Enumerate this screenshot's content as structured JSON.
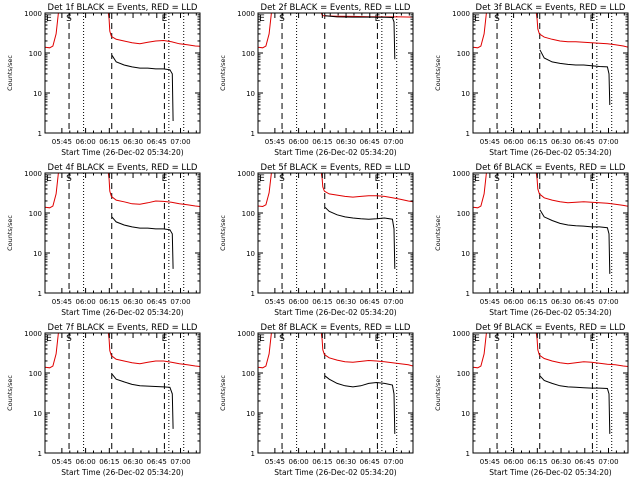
{
  "layout": {
    "rows": 3,
    "cols": 3
  },
  "common": {
    "title_suffix": "BLACK = Events, RED = LLD",
    "xlabel": "Start Time (26-Dec-02 05:34:20)",
    "ylabel": "Counts/sec",
    "x_tick_labels": [
      "05:45",
      "06:00",
      "06:15",
      "06:30",
      "06:45",
      "07:00"
    ],
    "x_tick_minutes": [
      10.67,
      25.67,
      40.67,
      55.67,
      70.67,
      85.67
    ],
    "y_tick_labels": [
      "1",
      "10",
      "100",
      "1000"
    ],
    "y_tick_values": [
      1,
      10,
      100,
      1000
    ],
    "xlim_minutes": [
      0,
      98
    ],
    "ylim": [
      1,
      1000
    ],
    "yscale": "log",
    "markers": {
      "S": 15.2,
      "E": 75.5
    },
    "dashed_lines_minutes": [
      15.2,
      42.2,
      75.5
    ],
    "dotted_lines_minutes": [
      24.4,
      78.3,
      87.7
    ],
    "colors": {
      "events": "#000000",
      "lld": "#e00000",
      "axes": "#000000"
    }
  },
  "chart_data": [
    {
      "type": "line",
      "title": "Det 1f BLACK = Events, RED = LLD",
      "xlabel": "Start Time (26-Dec-02 05:34:20)",
      "ylabel": "Counts/sec",
      "yscale": "log",
      "ylim": [
        1,
        1000
      ],
      "series": [
        {
          "name": "Events",
          "x": [
            42.3,
            45,
            50,
            55,
            60,
            65,
            70,
            75,
            79,
            80.5,
            81
          ],
          "y": [
            88,
            60,
            50,
            45,
            42,
            42,
            40,
            40,
            38,
            30,
            2
          ]
        },
        {
          "name": "LLD",
          "x": [
            0,
            3,
            5,
            7,
            8.5,
            9.5,
            11,
            12.5,
            14,
            15,
            40,
            40.5,
            41,
            42,
            45,
            50,
            55,
            60,
            65,
            70,
            75,
            80,
            85,
            90,
            95,
            98
          ],
          "y": [
            140,
            135,
            150,
            300,
            1000,
            1000,
            1000,
            1000,
            1000,
            1000,
            1000,
            700,
            350,
            260,
            220,
            200,
            180,
            170,
            185,
            200,
            205,
            190,
            170,
            160,
            150,
            148
          ]
        }
      ]
    },
    {
      "type": "line",
      "title": "Det 2f BLACK = Events, RED = LLD",
      "xlabel": "Start Time (26-Dec-02 05:34:20)",
      "ylabel": "Counts/sec",
      "yscale": "log",
      "ylim": [
        1,
        1000
      ],
      "series": [
        {
          "name": "Events",
          "x": [
            42.3,
            50,
            60,
            70,
            80,
            85,
            86,
            86.5
          ],
          "y": [
            850,
            800,
            790,
            790,
            780,
            770,
            600,
            70
          ]
        },
        {
          "name": "LLD",
          "x": [
            0,
            3,
            5,
            7,
            8.5,
            9.5,
            11,
            12.5,
            14,
            15,
            40,
            40.5,
            41,
            42,
            45,
            50,
            60,
            70,
            80,
            90,
            98
          ],
          "y": [
            140,
            135,
            150,
            300,
            1000,
            1000,
            1000,
            1000,
            1000,
            1000,
            1000,
            900,
            860,
            850,
            840,
            830,
            820,
            810,
            800,
            800,
            790
          ]
        }
      ]
    },
    {
      "type": "line",
      "title": "Det 3f BLACK = Events, RED = LLD",
      "xlabel": "Start Time (26-Dec-02 05:34:20)",
      "ylabel": "Counts/sec",
      "yscale": "log",
      "ylim": [
        1,
        1000
      ],
      "series": [
        {
          "name": "Events",
          "x": [
            42.3,
            45,
            50,
            55,
            60,
            65,
            70,
            75,
            80,
            85,
            86,
            86.5
          ],
          "y": [
            120,
            75,
            60,
            55,
            52,
            50,
            50,
            48,
            46,
            45,
            30,
            5
          ]
        },
        {
          "name": "LLD",
          "x": [
            0,
            3,
            5,
            7,
            8.5,
            9.5,
            11,
            12.5,
            14,
            15,
            40,
            40.5,
            41,
            42,
            45,
            50,
            55,
            60,
            65,
            70,
            75,
            80,
            85,
            90,
            95,
            98
          ],
          "y": [
            140,
            135,
            150,
            300,
            1000,
            1000,
            1000,
            1000,
            1000,
            1000,
            1000,
            700,
            400,
            300,
            250,
            220,
            200,
            190,
            190,
            185,
            180,
            175,
            170,
            160,
            150,
            140
          ]
        }
      ]
    },
    {
      "type": "line",
      "title": "Det 4f BLACK = Events, RED = LLD",
      "xlabel": "Start Time (26-Dec-02 05:34:20)",
      "ylabel": "Counts/sec",
      "yscale": "log",
      "ylim": [
        1,
        1000
      ],
      "series": [
        {
          "name": "Events",
          "x": [
            42.3,
            45,
            50,
            55,
            60,
            65,
            70,
            75,
            79,
            80.5,
            81
          ],
          "y": [
            80,
            60,
            50,
            45,
            42,
            42,
            40,
            40,
            38,
            30,
            4
          ]
        },
        {
          "name": "LLD",
          "x": [
            0,
            3,
            5,
            7,
            8.5,
            9.5,
            11,
            12.5,
            14,
            15,
            40,
            40.5,
            41,
            42,
            45,
            50,
            55,
            60,
            65,
            70,
            75,
            80,
            85,
            90,
            95,
            98
          ],
          "y": [
            140,
            135,
            150,
            300,
            1000,
            1000,
            1000,
            1000,
            1000,
            1000,
            1000,
            700,
            350,
            260,
            210,
            190,
            170,
            165,
            180,
            200,
            195,
            185,
            170,
            160,
            150,
            145
          ]
        }
      ]
    },
    {
      "type": "line",
      "title": "Det 5f BLACK = Events, RED = LLD",
      "xlabel": "Start Time (26-Dec-02 05:34:20)",
      "ylabel": "Counts/sec",
      "yscale": "log",
      "ylim": [
        1,
        1000
      ],
      "series": [
        {
          "name": "Events",
          "x": [
            42.3,
            45,
            50,
            55,
            60,
            65,
            70,
            75,
            80,
            85,
            86,
            86.5
          ],
          "y": [
            140,
            110,
            90,
            80,
            75,
            72,
            70,
            72,
            75,
            70,
            40,
            4
          ]
        },
        {
          "name": "LLD",
          "x": [
            0,
            3,
            5,
            7,
            8.5,
            9.5,
            11,
            12.5,
            14,
            15,
            40,
            40.5,
            41,
            42,
            45,
            50,
            55,
            60,
            65,
            70,
            75,
            80,
            85,
            90,
            95,
            98
          ],
          "y": [
            150,
            145,
            160,
            320,
            1000,
            1000,
            1000,
            1000,
            1000,
            1000,
            1000,
            750,
            450,
            350,
            300,
            280,
            260,
            250,
            260,
            270,
            270,
            260,
            240,
            220,
            200,
            190
          ]
        }
      ]
    },
    {
      "type": "line",
      "title": "Det 6f BLACK = Events, RED = LLD",
      "xlabel": "Start Time (26-Dec-02 05:34:20)",
      "ylabel": "Counts/sec",
      "yscale": "log",
      "ylim": [
        1,
        1000
      ],
      "series": [
        {
          "name": "Events",
          "x": [
            42.3,
            45,
            50,
            55,
            60,
            65,
            70,
            75,
            80,
            85,
            86,
            86.5
          ],
          "y": [
            120,
            80,
            65,
            55,
            50,
            48,
            47,
            45,
            45,
            43,
            30,
            3
          ]
        },
        {
          "name": "LLD",
          "x": [
            0,
            3,
            5,
            7,
            8.5,
            9.5,
            11,
            12.5,
            14,
            15,
            40,
            40.5,
            41,
            42,
            45,
            50,
            55,
            60,
            65,
            70,
            75,
            80,
            85,
            90,
            95,
            98
          ],
          "y": [
            140,
            135,
            150,
            300,
            1000,
            1000,
            1000,
            1000,
            1000,
            1000,
            1000,
            700,
            400,
            300,
            240,
            210,
            190,
            180,
            185,
            190,
            185,
            180,
            175,
            165,
            155,
            148
          ]
        }
      ]
    },
    {
      "type": "line",
      "title": "Det 7f BLACK = Events, RED = LLD",
      "xlabel": "Start Time (26-Dec-02 05:34:20)",
      "ylabel": "Counts/sec",
      "yscale": "log",
      "ylim": [
        1,
        1000
      ],
      "series": [
        {
          "name": "Events",
          "x": [
            42.3,
            45,
            50,
            55,
            60,
            65,
            70,
            75,
            79,
            80.5,
            81
          ],
          "y": [
            95,
            70,
            60,
            52,
            48,
            47,
            46,
            45,
            44,
            30,
            4
          ]
        },
        {
          "name": "LLD",
          "x": [
            0,
            3,
            5,
            7,
            8.5,
            9.5,
            11,
            12.5,
            14,
            15,
            40,
            40.5,
            41,
            42,
            45,
            50,
            55,
            60,
            65,
            70,
            75,
            80,
            85,
            90,
            95,
            98
          ],
          "y": [
            140,
            135,
            150,
            300,
            1000,
            1000,
            1000,
            1000,
            1000,
            1000,
            1000,
            700,
            360,
            270,
            220,
            200,
            180,
            170,
            185,
            200,
            200,
            185,
            170,
            160,
            150,
            145
          ]
        }
      ]
    },
    {
      "type": "line",
      "title": "Det 8f BLACK = Events, RED = LLD",
      "xlabel": "Start Time (26-Dec-02 05:34:20)",
      "ylabel": "Counts/sec",
      "yscale": "log",
      "ylim": [
        1,
        1000
      ],
      "series": [
        {
          "name": "Events",
          "x": [
            42.3,
            45,
            50,
            55,
            60,
            65,
            70,
            75,
            80,
            85,
            86,
            86.5
          ],
          "y": [
            85,
            70,
            55,
            48,
            45,
            48,
            55,
            58,
            55,
            50,
            30,
            3
          ]
        },
        {
          "name": "LLD",
          "x": [
            0,
            3,
            5,
            7,
            8.5,
            9.5,
            11,
            12.5,
            14,
            15,
            40,
            40.5,
            41,
            42,
            45,
            50,
            55,
            60,
            65,
            70,
            75,
            80,
            85,
            90,
            95,
            98
          ],
          "y": [
            140,
            135,
            150,
            300,
            1000,
            1000,
            1000,
            1000,
            1000,
            1000,
            1000,
            700,
            380,
            290,
            240,
            210,
            190,
            185,
            195,
            205,
            200,
            190,
            180,
            170,
            160,
            150
          ]
        }
      ]
    },
    {
      "type": "line",
      "title": "Det 9f BLACK = Events, RED = LLD",
      "xlabel": "Start Time (26-Dec-02 05:34:20)",
      "ylabel": "Counts/sec",
      "yscale": "log",
      "ylim": [
        1,
        1000
      ],
      "series": [
        {
          "name": "Events",
          "x": [
            42.3,
            45,
            50,
            55,
            60,
            65,
            70,
            75,
            80,
            85,
            86,
            86.5
          ],
          "y": [
            85,
            65,
            55,
            48,
            45,
            44,
            43,
            42,
            42,
            41,
            30,
            3
          ]
        },
        {
          "name": "LLD",
          "x": [
            0,
            3,
            5,
            7,
            8.5,
            9.5,
            11,
            12.5,
            14,
            15,
            40,
            40.5,
            41,
            42,
            45,
            50,
            55,
            60,
            65,
            70,
            75,
            80,
            85,
            90,
            95,
            98
          ],
          "y": [
            140,
            135,
            150,
            300,
            1000,
            1000,
            1000,
            1000,
            1000,
            1000,
            1000,
            700,
            380,
            280,
            230,
            200,
            180,
            170,
            180,
            190,
            185,
            175,
            165,
            160,
            150,
            145
          ]
        }
      ]
    }
  ]
}
